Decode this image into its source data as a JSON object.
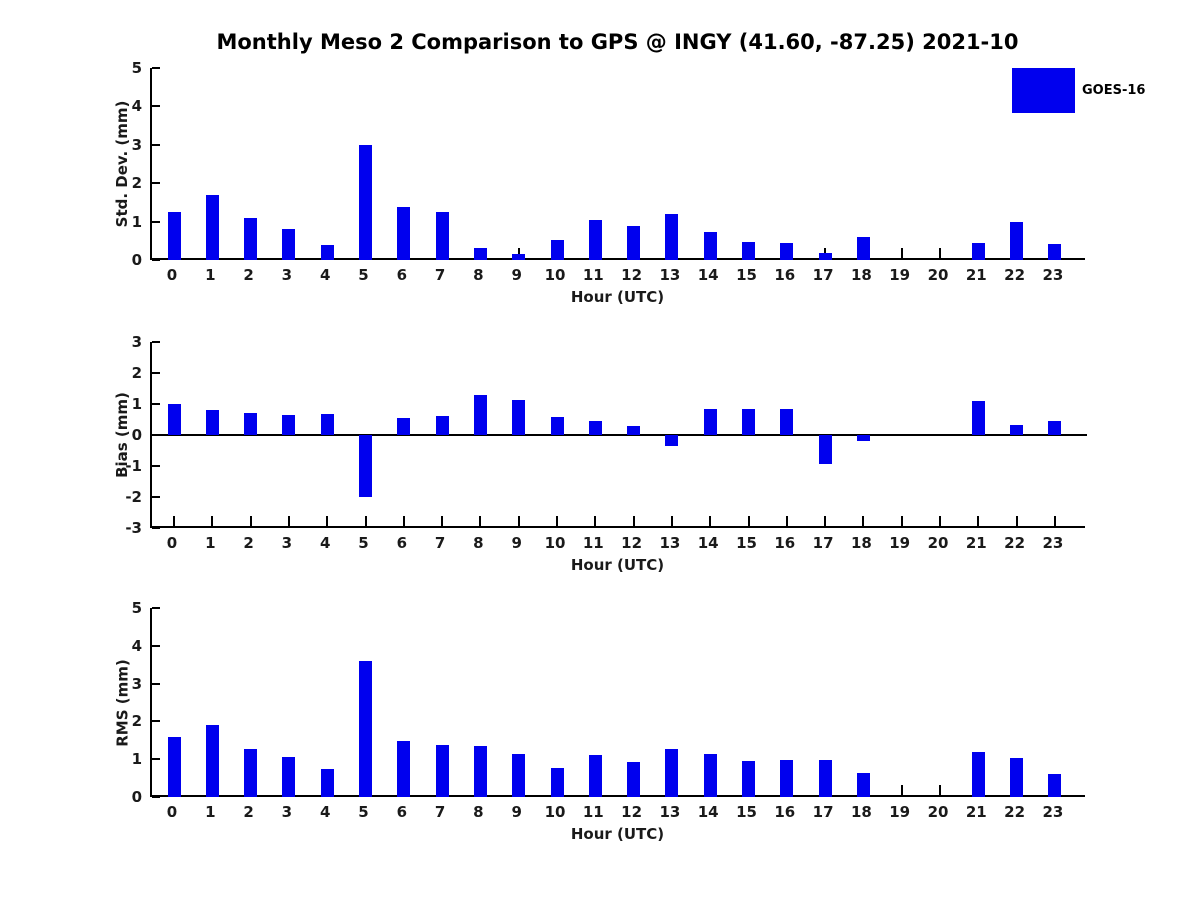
{
  "title": "Monthly Meso 2 Comparison to GPS @ INGY (41.60, -87.25) 2021-10",
  "legend": {
    "label": "GOES-16",
    "color": "#0000ee"
  },
  "xlabel": "Hour (UTC)",
  "bar_color": "#0000ee",
  "hours": [
    "0",
    "1",
    "2",
    "3",
    "4",
    "5",
    "6",
    "7",
    "8",
    "9",
    "10",
    "11",
    "12",
    "13",
    "14",
    "15",
    "16",
    "17",
    "18",
    "19",
    "20",
    "21",
    "22",
    "23"
  ],
  "chart_data": [
    {
      "type": "bar",
      "ylabel": "Std. Dev. (mm)",
      "ylim": [
        0,
        5
      ],
      "yticks": [
        0,
        1,
        2,
        3,
        4,
        5
      ],
      "categories": [
        "0",
        "1",
        "2",
        "3",
        "4",
        "5",
        "6",
        "7",
        "8",
        "9",
        "10",
        "11",
        "12",
        "13",
        "14",
        "15",
        "16",
        "17",
        "18",
        "19",
        "20",
        "21",
        "22",
        "23"
      ],
      "values": [
        1.25,
        1.7,
        1.1,
        0.82,
        0.38,
        3.0,
        1.37,
        1.25,
        0.3,
        0.15,
        0.53,
        1.03,
        0.88,
        1.2,
        0.73,
        0.48,
        0.45,
        0.17,
        0.6,
        0.0,
        0.0,
        0.45,
        0.98,
        0.42
      ]
    },
    {
      "type": "bar",
      "ylabel": "Bias (mm)",
      "ylim": [
        -3,
        3
      ],
      "yticks": [
        3,
        2,
        1,
        0,
        -1,
        -2,
        -3
      ],
      "categories": [
        "0",
        "1",
        "2",
        "3",
        "4",
        "5",
        "6",
        "7",
        "8",
        "9",
        "10",
        "11",
        "12",
        "13",
        "14",
        "15",
        "16",
        "17",
        "18",
        "19",
        "20",
        "21",
        "22",
        "23"
      ],
      "values": [
        1.0,
        0.82,
        0.7,
        0.63,
        0.67,
        -2.0,
        0.55,
        0.6,
        1.3,
        1.12,
        0.57,
        0.45,
        0.3,
        -0.35,
        0.85,
        0.83,
        0.83,
        -0.95,
        -0.2,
        0.0,
        0.0,
        1.1,
        0.32,
        0.45
      ]
    },
    {
      "type": "bar",
      "ylabel": "RMS (mm)",
      "ylim": [
        0,
        5
      ],
      "yticks": [
        0,
        1,
        2,
        3,
        4,
        5
      ],
      "categories": [
        "0",
        "1",
        "2",
        "3",
        "4",
        "5",
        "6",
        "7",
        "8",
        "9",
        "10",
        "11",
        "12",
        "13",
        "14",
        "15",
        "16",
        "17",
        "18",
        "19",
        "20",
        "21",
        "22",
        "23"
      ],
      "values": [
        1.6,
        1.9,
        1.28,
        1.05,
        0.75,
        3.6,
        1.48,
        1.38,
        1.35,
        1.15,
        0.78,
        1.1,
        0.93,
        1.28,
        1.15,
        0.95,
        0.98,
        0.98,
        0.63,
        0.0,
        0.0,
        1.2,
        1.03,
        0.6
      ]
    }
  ]
}
